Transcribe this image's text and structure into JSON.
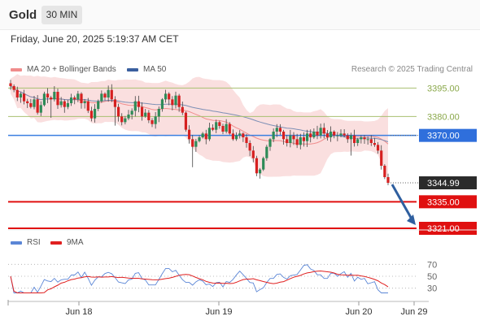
{
  "header": {
    "symbol": "Gold",
    "interval": "30 MIN",
    "datetime": "Friday, June 20, 2025 5:19:37 AM CET"
  },
  "legend": {
    "items": [
      {
        "label": "MA 20 + Bollinger Bands",
        "color": "#f08c8c"
      },
      {
        "label": "MA 50",
        "color": "#3a5f9f"
      }
    ],
    "credit": "Research © 2025 Trading Central"
  },
  "rsi_legend": {
    "items": [
      {
        "label": "RSI",
        "color": "#5b86d6"
      },
      {
        "label": "9MA",
        "color": "#e02020"
      }
    ]
  },
  "chart_data": [
    {
      "type": "candlestick",
      "title": "Gold",
      "ylim": [
        3318,
        3402
      ],
      "x_ticks": [
        "Jun 18",
        "Jun 19",
        "Jun 20",
        "Jun 29"
      ],
      "last_price": {
        "value": 3344.99,
        "label": "3344.99"
      },
      "levels": [
        {
          "value": 3395.0,
          "label": "3395.00",
          "kind": "resistance",
          "color": "#a8c070"
        },
        {
          "value": 3380.0,
          "label": "3380.00",
          "kind": "resistance",
          "color": "#a8c070"
        },
        {
          "value": 3370.0,
          "label": "3370.00",
          "kind": "pivot",
          "color": "#3b7fe0"
        },
        {
          "value": 3335.0,
          "label": "3335.00",
          "kind": "support",
          "color": "#e01010"
        },
        {
          "value": 3321.0,
          "label": "3321.00",
          "kind": "support",
          "color": "#e01010"
        }
      ],
      "forecast_arrow": {
        "from": 3344.99,
        "to": 3321.0
      },
      "colors": {
        "up": "#2e8b57",
        "down": "#d62020",
        "bands": "#f5c5c5"
      },
      "close": [
        3396,
        3394,
        3390,
        3392,
        3388,
        3387,
        3385,
        3389,
        3382,
        3386,
        3392,
        3390,
        3389,
        3393,
        3386,
        3388,
        3385,
        3387,
        3390,
        3389,
        3392,
        3387,
        3388,
        3383,
        3379,
        3384,
        3388,
        3392,
        3390,
        3394,
        3389,
        3385,
        3380,
        3377,
        3379,
        3381,
        3383,
        3388,
        3385,
        3380,
        3382,
        3378,
        3376,
        3380,
        3384,
        3389,
        3392,
        3389,
        3386,
        3391,
        3385,
        3382,
        3373,
        3368,
        3364,
        3367,
        3369,
        3371,
        3368,
        3374,
        3373,
        3377,
        3375,
        3372,
        3376,
        3371,
        3368,
        3370,
        3371,
        3369,
        3366,
        3362,
        3358,
        3350,
        3352,
        3358,
        3364,
        3368,
        3372,
        3374,
        3372,
        3368,
        3366,
        3370,
        3368,
        3365,
        3369,
        3367,
        3371,
        3369,
        3372,
        3370,
        3374,
        3371,
        3369,
        3372,
        3370,
        3370,
        3371,
        3370,
        3368,
        3370,
        3366,
        3368,
        3369,
        3368,
        3368,
        3366,
        3365,
        3362,
        3354,
        3348,
        3344.99
      ],
      "rsi": {
        "ylim": [
          20,
          80
        ],
        "ticks": [
          70,
          50,
          30
        ],
        "reference": [
          70,
          50,
          30
        ]
      }
    }
  ]
}
